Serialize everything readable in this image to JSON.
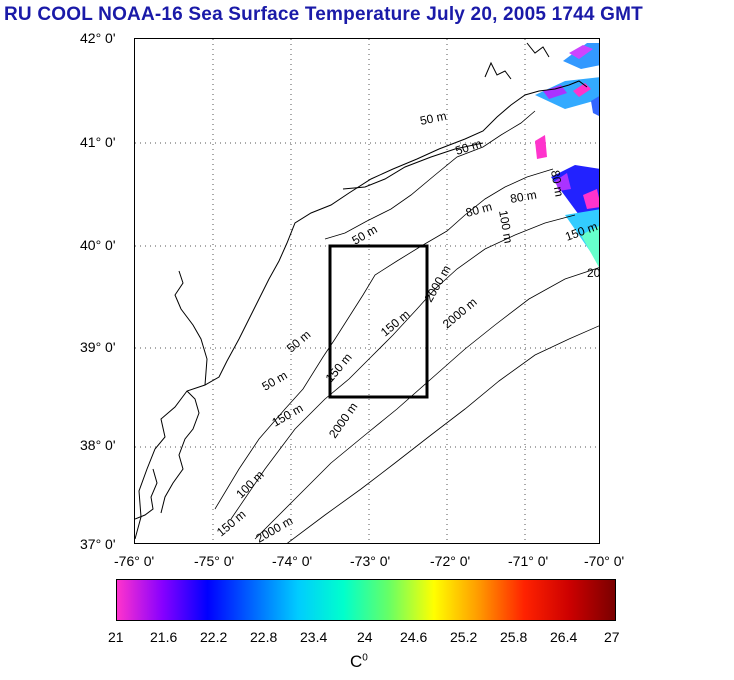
{
  "title": "RU COOL  NOAA-16 Sea Surface Temperature July 20, 2005 1744 GMT",
  "axes": {
    "lat_labels": [
      "42° 0'",
      "41° 0'",
      "40° 0'",
      "39° 0'",
      "38° 0'",
      "37° 0'"
    ],
    "lon_labels": [
      "-76° 0'",
      "-75° 0'",
      "-74° 0'",
      "-73° 0'",
      "-72° 0'",
      "-71° 0'",
      "-70° 0'"
    ]
  },
  "map": {
    "lat_range": [
      37,
      42
    ],
    "lon_range": [
      -76,
      -70
    ],
    "study_box": {
      "lon": [
        -73.5,
        -72.5
      ],
      "lat": [
        38.5,
        40
      ]
    },
    "contour_labels": [
      "50 m",
      "50 m",
      "50 m",
      "50 m",
      "50 m",
      "80 m",
      "80 m",
      "80 m",
      "100 m",
      "100 m",
      "150 m",
      "150 m",
      "150 m",
      "150 m",
      "150 m",
      "2000 m",
      "2000 m",
      "2000 m",
      "2000 m",
      "20"
    ]
  },
  "colorbar": {
    "ticks": [
      "21",
      "21.6",
      "22.2",
      "22.8",
      "23.4",
      "24",
      "24.6",
      "25.2",
      "25.8",
      "26.4",
      "27"
    ],
    "unit": "C",
    "unit_sup": "0",
    "colors": [
      "#ff33cc",
      "#8800ff",
      "#0000ff",
      "#0066ff",
      "#00ccff",
      "#00ffcc",
      "#66ff66",
      "#ffff00",
      "#ff9900",
      "#ff2200",
      "#cc0000",
      "#7a0000"
    ]
  }
}
